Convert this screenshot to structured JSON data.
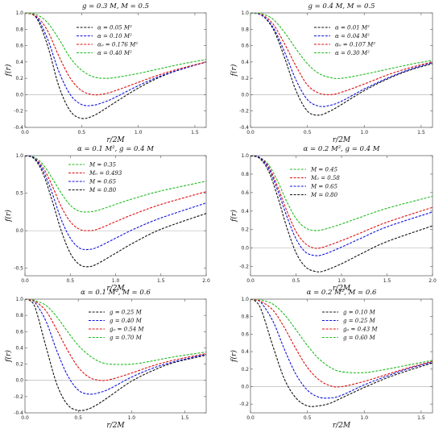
{
  "colors": {
    "green": "#22bb22",
    "red": "#dd1111",
    "blue": "#1111dd",
    "black": "#111111"
  },
  "chart_data": [
    {
      "type": "line",
      "title": "g = 0.3 M, M = 0.5",
      "xlabel": "r/2M",
      "ylabel": "f(r)",
      "xlim": [
        0,
        1.6
      ],
      "ylim": [
        -0.4,
        1.0
      ],
      "xticks": [
        "0.0",
        "0.5",
        "1.0",
        "1.5"
      ],
      "yticks": [
        "-0.4",
        "-0.2",
        "0.0",
        "0.2",
        "0.4",
        "0.6",
        "0.8",
        "1.0"
      ],
      "grid": false,
      "legend": "top-center",
      "series": [
        {
          "name": "α = 0.05 M²",
          "color": "black",
          "x": [
            0,
            0.1,
            0.2,
            0.3,
            0.4,
            0.5,
            0.6,
            0.7,
            0.8,
            1.0,
            1.2,
            1.4,
            1.6
          ],
          "y": [
            1.0,
            0.94,
            0.6,
            0.1,
            -0.2,
            -0.29,
            -0.26,
            -0.18,
            -0.09,
            0.08,
            0.22,
            0.32,
            0.4
          ]
        },
        {
          "name": "α = 0.10 M²",
          "color": "blue",
          "x": [
            0,
            0.1,
            0.2,
            0.3,
            0.4,
            0.5,
            0.6,
            0.7,
            0.8,
            1.0,
            1.2,
            1.4,
            1.6
          ],
          "y": [
            1.0,
            0.95,
            0.68,
            0.28,
            0.0,
            -0.12,
            -0.13,
            -0.09,
            -0.03,
            0.11,
            0.23,
            0.32,
            0.4
          ]
        },
        {
          "name": "α₀ = 0.176 M²",
          "color": "red",
          "x": [
            0,
            0.1,
            0.2,
            0.3,
            0.4,
            0.5,
            0.6,
            0.7,
            0.8,
            1.0,
            1.2,
            1.4,
            1.6
          ],
          "y": [
            1.0,
            0.96,
            0.78,
            0.47,
            0.2,
            0.05,
            0.0,
            0.01,
            0.05,
            0.15,
            0.25,
            0.33,
            0.4
          ]
        },
        {
          "name": "α = 0.40 M²",
          "color": "green",
          "x": [
            0,
            0.1,
            0.2,
            0.3,
            0.4,
            0.5,
            0.6,
            0.7,
            0.8,
            1.0,
            1.2,
            1.4,
            1.6
          ],
          "y": [
            1.0,
            0.98,
            0.88,
            0.68,
            0.45,
            0.3,
            0.22,
            0.2,
            0.21,
            0.26,
            0.32,
            0.38,
            0.43
          ]
        }
      ]
    },
    {
      "type": "line",
      "title": "g = 0.4 M, M = 0.5",
      "xlabel": "r/2M",
      "ylabel": "f(r)",
      "xlim": [
        0,
        1.6
      ],
      "ylim": [
        -0.4,
        1.0
      ],
      "xticks": [
        "0.0",
        "0.5",
        "1.0",
        "1.5"
      ],
      "yticks": [
        "-0.4",
        "-0.2",
        "0.0",
        "0.2",
        "0.4",
        "0.6",
        "0.8",
        "1.0"
      ],
      "grid": false,
      "legend": "top-center",
      "series": [
        {
          "name": "α = 0.01 M²",
          "color": "black",
          "x": [
            0,
            0.1,
            0.2,
            0.3,
            0.4,
            0.5,
            0.6,
            0.7,
            0.8,
            1.0,
            1.2,
            1.4,
            1.6
          ],
          "y": [
            1.0,
            0.97,
            0.8,
            0.45,
            0.05,
            -0.2,
            -0.25,
            -0.2,
            -0.12,
            0.05,
            0.19,
            0.3,
            0.38
          ]
        },
        {
          "name": "α = 0.04 M²",
          "color": "blue",
          "x": [
            0,
            0.1,
            0.2,
            0.3,
            0.4,
            0.5,
            0.6,
            0.7,
            0.8,
            1.0,
            1.2,
            1.4,
            1.6
          ],
          "y": [
            1.0,
            0.97,
            0.82,
            0.52,
            0.18,
            -0.06,
            -0.14,
            -0.13,
            -0.08,
            0.07,
            0.2,
            0.31,
            0.39
          ]
        },
        {
          "name": "α₀ = 0.107 M²",
          "color": "red",
          "x": [
            0,
            0.1,
            0.2,
            0.3,
            0.4,
            0.5,
            0.6,
            0.7,
            0.8,
            1.0,
            1.2,
            1.4,
            1.6
          ],
          "y": [
            1.0,
            0.98,
            0.86,
            0.62,
            0.35,
            0.12,
            0.02,
            0.0,
            0.03,
            0.13,
            0.24,
            0.33,
            0.4
          ]
        },
        {
          "name": "α = 0.30 M²",
          "color": "green",
          "x": [
            0,
            0.1,
            0.2,
            0.3,
            0.4,
            0.5,
            0.6,
            0.7,
            0.8,
            1.0,
            1.2,
            1.4,
            1.6
          ],
          "y": [
            1.0,
            0.99,
            0.92,
            0.76,
            0.56,
            0.38,
            0.26,
            0.21,
            0.2,
            0.25,
            0.31,
            0.37,
            0.42
          ]
        }
      ]
    },
    {
      "type": "line",
      "title": "α = 0.1 M², g = 0.4 M",
      "xlabel": "r/2M",
      "ylabel": "f(r)",
      "xlim": [
        0,
        2.0
      ],
      "ylim": [
        -0.6,
        1.0
      ],
      "xticks": [
        "0.0",
        "0.5",
        "1.0",
        "1.5",
        "2.0"
      ],
      "yticks": [
        "-0.5",
        "0.0",
        "0.5",
        "1.0"
      ],
      "grid": false,
      "legend": "top-center",
      "series": [
        {
          "name": "M = 0.35",
          "color": "green",
          "x": [
            0,
            0.1,
            0.2,
            0.3,
            0.4,
            0.5,
            0.6,
            0.7,
            0.8,
            1.0,
            1.2,
            1.5,
            2.0
          ],
          "y": [
            1.0,
            0.98,
            0.88,
            0.7,
            0.5,
            0.34,
            0.26,
            0.25,
            0.27,
            0.35,
            0.43,
            0.53,
            0.66
          ]
        },
        {
          "name": "M₀ = 0.493",
          "color": "red",
          "x": [
            0,
            0.1,
            0.2,
            0.3,
            0.4,
            0.5,
            0.6,
            0.7,
            0.8,
            1.0,
            1.2,
            1.5,
            2.0
          ],
          "y": [
            1.0,
            0.97,
            0.84,
            0.6,
            0.32,
            0.12,
            0.02,
            0.0,
            0.02,
            0.12,
            0.22,
            0.35,
            0.52
          ]
        },
        {
          "name": "M = 0.65",
          "color": "blue",
          "x": [
            0,
            0.1,
            0.2,
            0.3,
            0.4,
            0.5,
            0.6,
            0.7,
            0.8,
            1.0,
            1.2,
            1.5,
            2.0
          ],
          "y": [
            1.0,
            0.97,
            0.8,
            0.5,
            0.15,
            -0.1,
            -0.23,
            -0.25,
            -0.22,
            -0.1,
            0.02,
            0.17,
            0.37
          ]
        },
        {
          "name": "M = 0.80",
          "color": "black",
          "x": [
            0,
            0.1,
            0.2,
            0.3,
            0.4,
            0.5,
            0.6,
            0.7,
            0.8,
            1.0,
            1.2,
            1.5,
            2.0
          ],
          "y": [
            1.0,
            0.96,
            0.76,
            0.4,
            0.0,
            -0.3,
            -0.45,
            -0.48,
            -0.44,
            -0.3,
            -0.16,
            0.02,
            0.23
          ]
        }
      ]
    },
    {
      "type": "line",
      "title": "α = 0.2 M², g = 0.4 M",
      "xlabel": "r/2M",
      "ylabel": "f(r)",
      "xlim": [
        0,
        2.0
      ],
      "ylim": [
        -0.3,
        1.0
      ],
      "xticks": [
        "0.0",
        "0.5",
        "1.0",
        "1.5",
        "2.0"
      ],
      "yticks": [
        "-0.2",
        "0.0",
        "0.2",
        "0.4",
        "0.6",
        "0.8",
        "1.0"
      ],
      "grid": false,
      "legend": "top-center",
      "series": [
        {
          "name": "M = 0.45",
          "color": "green",
          "x": [
            0,
            0.1,
            0.2,
            0.3,
            0.4,
            0.5,
            0.6,
            0.7,
            0.8,
            1.0,
            1.2,
            1.5,
            2.0
          ],
          "y": [
            1.0,
            0.98,
            0.9,
            0.72,
            0.5,
            0.32,
            0.22,
            0.19,
            0.2,
            0.26,
            0.33,
            0.43,
            0.56
          ]
        },
        {
          "name": "M₀ = 0.58",
          "color": "red",
          "x": [
            0,
            0.1,
            0.2,
            0.3,
            0.4,
            0.5,
            0.6,
            0.7,
            0.8,
            1.0,
            1.2,
            1.5,
            2.0
          ],
          "y": [
            1.0,
            0.98,
            0.88,
            0.66,
            0.4,
            0.18,
            0.05,
            0.0,
            0.01,
            0.08,
            0.16,
            0.28,
            0.44
          ]
        },
        {
          "name": "M = 0.65",
          "color": "blue",
          "x": [
            0,
            0.1,
            0.2,
            0.3,
            0.4,
            0.5,
            0.6,
            0.7,
            0.8,
            1.0,
            1.2,
            1.5,
            2.0
          ],
          "y": [
            1.0,
            0.98,
            0.86,
            0.62,
            0.34,
            0.1,
            -0.04,
            -0.08,
            -0.07,
            0.01,
            0.1,
            0.23,
            0.39
          ]
        },
        {
          "name": "M = 0.80",
          "color": "black",
          "x": [
            0,
            0.1,
            0.2,
            0.3,
            0.4,
            0.5,
            0.6,
            0.7,
            0.8,
            1.0,
            1.2,
            1.5,
            2.0
          ],
          "y": [
            1.0,
            0.97,
            0.83,
            0.55,
            0.22,
            -0.05,
            -0.2,
            -0.25,
            -0.25,
            -0.17,
            -0.07,
            0.07,
            0.24
          ]
        }
      ]
    },
    {
      "type": "line",
      "title": "α = 0.1 M², M = 0.6",
      "xlabel": "r/2M",
      "ylabel": "f(r)",
      "xlim": [
        0,
        1.7
      ],
      "ylim": [
        -0.4,
        1.0
      ],
      "xticks": [
        "0.0",
        "0.5",
        "1.0",
        "1.5"
      ],
      "yticks": [
        "-0.4",
        "-0.2",
        "0.0",
        "0.2",
        "0.4",
        "0.6",
        "0.8",
        "1.0"
      ],
      "grid": false,
      "legend": "top-right",
      "series": [
        {
          "name": "g = 0.25 M",
          "color": "black",
          "x": [
            0,
            0.05,
            0.1,
            0.2,
            0.3,
            0.4,
            0.5,
            0.6,
            0.7,
            0.8,
            1.0,
            1.2,
            1.4,
            1.7
          ],
          "y": [
            1.0,
            0.98,
            0.88,
            0.4,
            -0.05,
            -0.3,
            -0.37,
            -0.35,
            -0.28,
            -0.19,
            -0.01,
            0.12,
            0.22,
            0.31
          ]
        },
        {
          "name": "g = 0.40 M",
          "color": "blue",
          "x": [
            0,
            0.05,
            0.1,
            0.2,
            0.3,
            0.4,
            0.5,
            0.6,
            0.7,
            0.8,
            1.0,
            1.2,
            1.4,
            1.7
          ],
          "y": [
            1.0,
            0.99,
            0.95,
            0.72,
            0.36,
            0.06,
            -0.12,
            -0.17,
            -0.15,
            -0.1,
            0.04,
            0.15,
            0.23,
            0.32
          ]
        },
        {
          "name": "g₀ = 0.54 M",
          "color": "red",
          "x": [
            0,
            0.05,
            0.1,
            0.2,
            0.3,
            0.4,
            0.5,
            0.6,
            0.7,
            0.8,
            1.0,
            1.2,
            1.4,
            1.7
          ],
          "y": [
            1.0,
            0.99,
            0.97,
            0.85,
            0.62,
            0.37,
            0.16,
            0.04,
            0.0,
            0.01,
            0.09,
            0.18,
            0.25,
            0.33
          ]
        },
        {
          "name": "g = 0.70 M",
          "color": "green",
          "x": [
            0,
            0.05,
            0.1,
            0.2,
            0.3,
            0.4,
            0.5,
            0.6,
            0.7,
            0.8,
            1.0,
            1.2,
            1.4,
            1.7
          ],
          "y": [
            1.0,
            1.0,
            0.98,
            0.92,
            0.78,
            0.6,
            0.43,
            0.31,
            0.23,
            0.2,
            0.2,
            0.24,
            0.29,
            0.35
          ]
        }
      ]
    },
    {
      "type": "line",
      "title": "α = 0.2 M², M = 0.6",
      "xlabel": "r/2M",
      "ylabel": "f(r)",
      "xlim": [
        0,
        1.6
      ],
      "ylim": [
        -0.3,
        1.0
      ],
      "xticks": [
        "0.0",
        "0.5",
        "1.0",
        "1.5"
      ],
      "yticks": [
        "-0.2",
        "0.0",
        "0.2",
        "0.4",
        "0.6",
        "0.8",
        "1.0"
      ],
      "grid": false,
      "legend": "top-right",
      "series": [
        {
          "name": "g = 0.10 M",
          "color": "black",
          "x": [
            0,
            0.05,
            0.1,
            0.2,
            0.3,
            0.4,
            0.5,
            0.6,
            0.7,
            0.8,
            1.0,
            1.2,
            1.4,
            1.6
          ],
          "y": [
            1.0,
            0.97,
            0.86,
            0.45,
            0.08,
            -0.13,
            -0.22,
            -0.22,
            -0.19,
            -0.13,
            -0.01,
            0.1,
            0.19,
            0.27
          ]
        },
        {
          "name": "g = 0.25 M",
          "color": "blue",
          "x": [
            0,
            0.05,
            0.1,
            0.2,
            0.3,
            0.4,
            0.5,
            0.6,
            0.7,
            0.8,
            1.0,
            1.2,
            1.4,
            1.6
          ],
          "y": [
            1.0,
            0.99,
            0.95,
            0.74,
            0.42,
            0.14,
            -0.04,
            -0.12,
            -0.13,
            -0.1,
            0.02,
            0.12,
            0.21,
            0.28
          ]
        },
        {
          "name": "g₀ = 0.43 M",
          "color": "red",
          "x": [
            0,
            0.05,
            0.1,
            0.2,
            0.3,
            0.4,
            0.5,
            0.6,
            0.7,
            0.8,
            1.0,
            1.2,
            1.4,
            1.6
          ],
          "y": [
            1.0,
            0.99,
            0.97,
            0.87,
            0.67,
            0.43,
            0.22,
            0.08,
            0.01,
            0.0,
            0.06,
            0.14,
            0.22,
            0.29
          ]
        },
        {
          "name": "g = 0.60 M",
          "color": "green",
          "x": [
            0,
            0.05,
            0.1,
            0.2,
            0.3,
            0.4,
            0.5,
            0.6,
            0.7,
            0.8,
            1.0,
            1.2,
            1.4,
            1.6
          ],
          "y": [
            1.0,
            1.0,
            0.99,
            0.94,
            0.82,
            0.65,
            0.47,
            0.32,
            0.22,
            0.17,
            0.16,
            0.2,
            0.25,
            0.3
          ]
        }
      ]
    }
  ]
}
